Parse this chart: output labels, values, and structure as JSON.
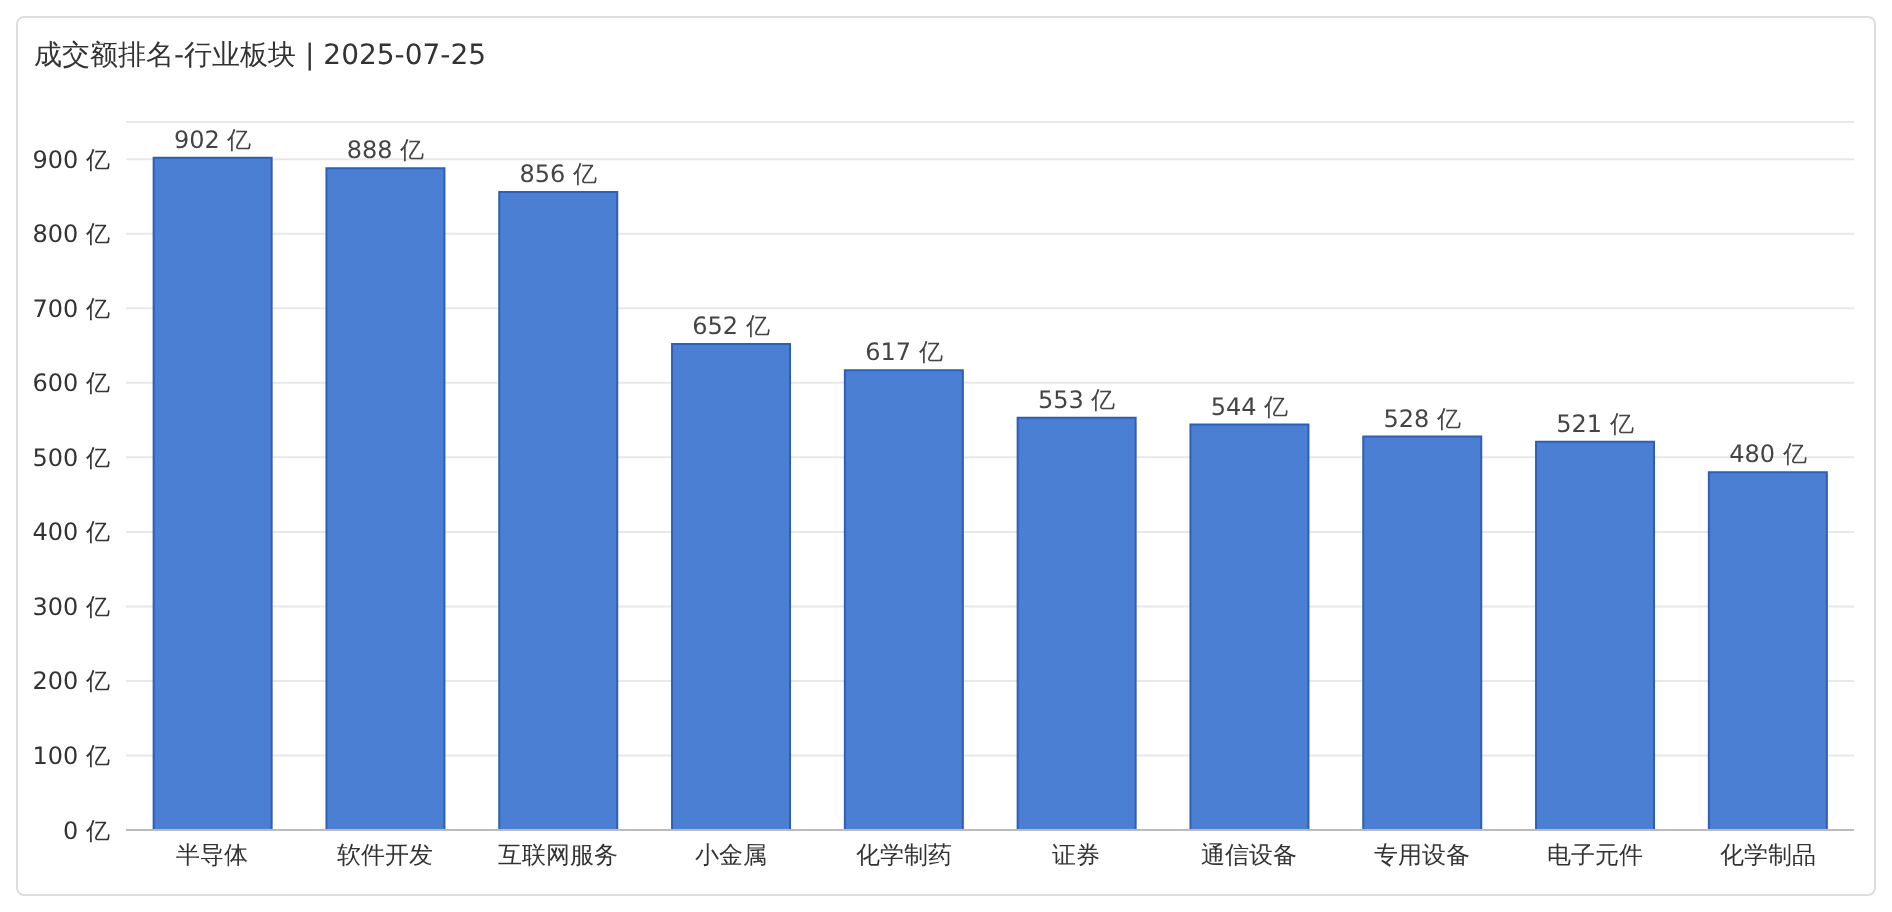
{
  "chart_data": {
    "type": "bar",
    "title": "成交额排名-行业板块 | 2025-07-25",
    "categories": [
      "半导体",
      "软件开发",
      "互联网服务",
      "小金属",
      "化学制药",
      "证券",
      "通信设备",
      "专用设备",
      "电子元件",
      "化学制品"
    ],
    "values": [
      902,
      888,
      856,
      652,
      617,
      553,
      544,
      528,
      521,
      480
    ],
    "value_labels": [
      "902 亿",
      "888 亿",
      "856 亿",
      "652 亿",
      "617 亿",
      "553 亿",
      "544 亿",
      "528 亿",
      "521 亿",
      "480 亿"
    ],
    "color": "#4a7fd4",
    "ylim": [
      0,
      950
    ],
    "yticks": [
      {
        "value": 0,
        "label": "0 亿"
      },
      {
        "value": 100,
        "label": "100 亿"
      },
      {
        "value": 200,
        "label": "200 亿"
      },
      {
        "value": 300,
        "label": "300 亿"
      },
      {
        "value": 400,
        "label": "400 亿"
      },
      {
        "value": 500,
        "label": "500 亿"
      },
      {
        "value": 600,
        "label": "600 亿"
      },
      {
        "value": 700,
        "label": "700 亿"
      },
      {
        "value": 800,
        "label": "800 亿"
      },
      {
        "value": 900,
        "label": "900 亿"
      }
    ],
    "grid": "y",
    "legend": false
  }
}
